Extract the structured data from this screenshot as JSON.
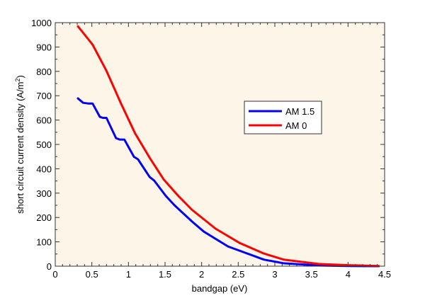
{
  "chart_data": {
    "type": "line",
    "title": "",
    "xlabel": "bandgap (eV)",
    "ylabel": "short circuit current density (A/m",
    "ylabel_sup": "2",
    "ylabel_close": ")",
    "xlim": [
      0,
      4.5
    ],
    "ylim": [
      0,
      1000
    ],
    "xticks": [
      0,
      0.5,
      1,
      1.5,
      2,
      2.5,
      3,
      3.5,
      4,
      4.5
    ],
    "xtick_labels": [
      "0",
      "0.5",
      "1",
      "1.5",
      "2",
      "2.5",
      "3",
      "3.5",
      "4",
      "4.5"
    ],
    "yticks": [
      0,
      100,
      200,
      300,
      400,
      500,
      600,
      700,
      800,
      900,
      1000
    ],
    "ytick_labels": [
      "0",
      "100",
      "200",
      "300",
      "400",
      "500",
      "600",
      "700",
      "800",
      "900",
      "1000"
    ],
    "grid": false,
    "legend_placement": "center-right",
    "plot_background": "#fdf5e8",
    "series": [
      {
        "name": "AM 1.5",
        "color": "#0000ff",
        "x": [
          0.31,
          0.38,
          0.45,
          0.51,
          0.61,
          0.65,
          0.7,
          0.83,
          0.88,
          0.945,
          1.075,
          1.13,
          1.29,
          1.35,
          1.51,
          1.63,
          1.87,
          2.03,
          2.36,
          2.85,
          3.12,
          3.6,
          4.0,
          4.42
        ],
        "y": [
          689,
          671,
          668,
          668,
          613,
          609,
          609,
          526,
          520,
          520,
          449,
          439,
          366,
          352,
          289,
          250,
          183,
          142,
          81,
          27,
          12,
          3,
          1,
          0
        ]
      },
      {
        "name": "AM 0",
        "color": "#ff0000",
        "x": [
          0.31,
          0.51,
          0.7,
          0.9,
          1.09,
          1.29,
          1.48,
          1.68,
          1.87,
          2.19,
          2.52,
          2.85,
          3.12,
          3.6,
          4.0,
          4.42
        ],
        "y": [
          985,
          910,
          802,
          667,
          546,
          445,
          357,
          289,
          231,
          154,
          95,
          52,
          27,
          9,
          4,
          1
        ]
      }
    ]
  }
}
